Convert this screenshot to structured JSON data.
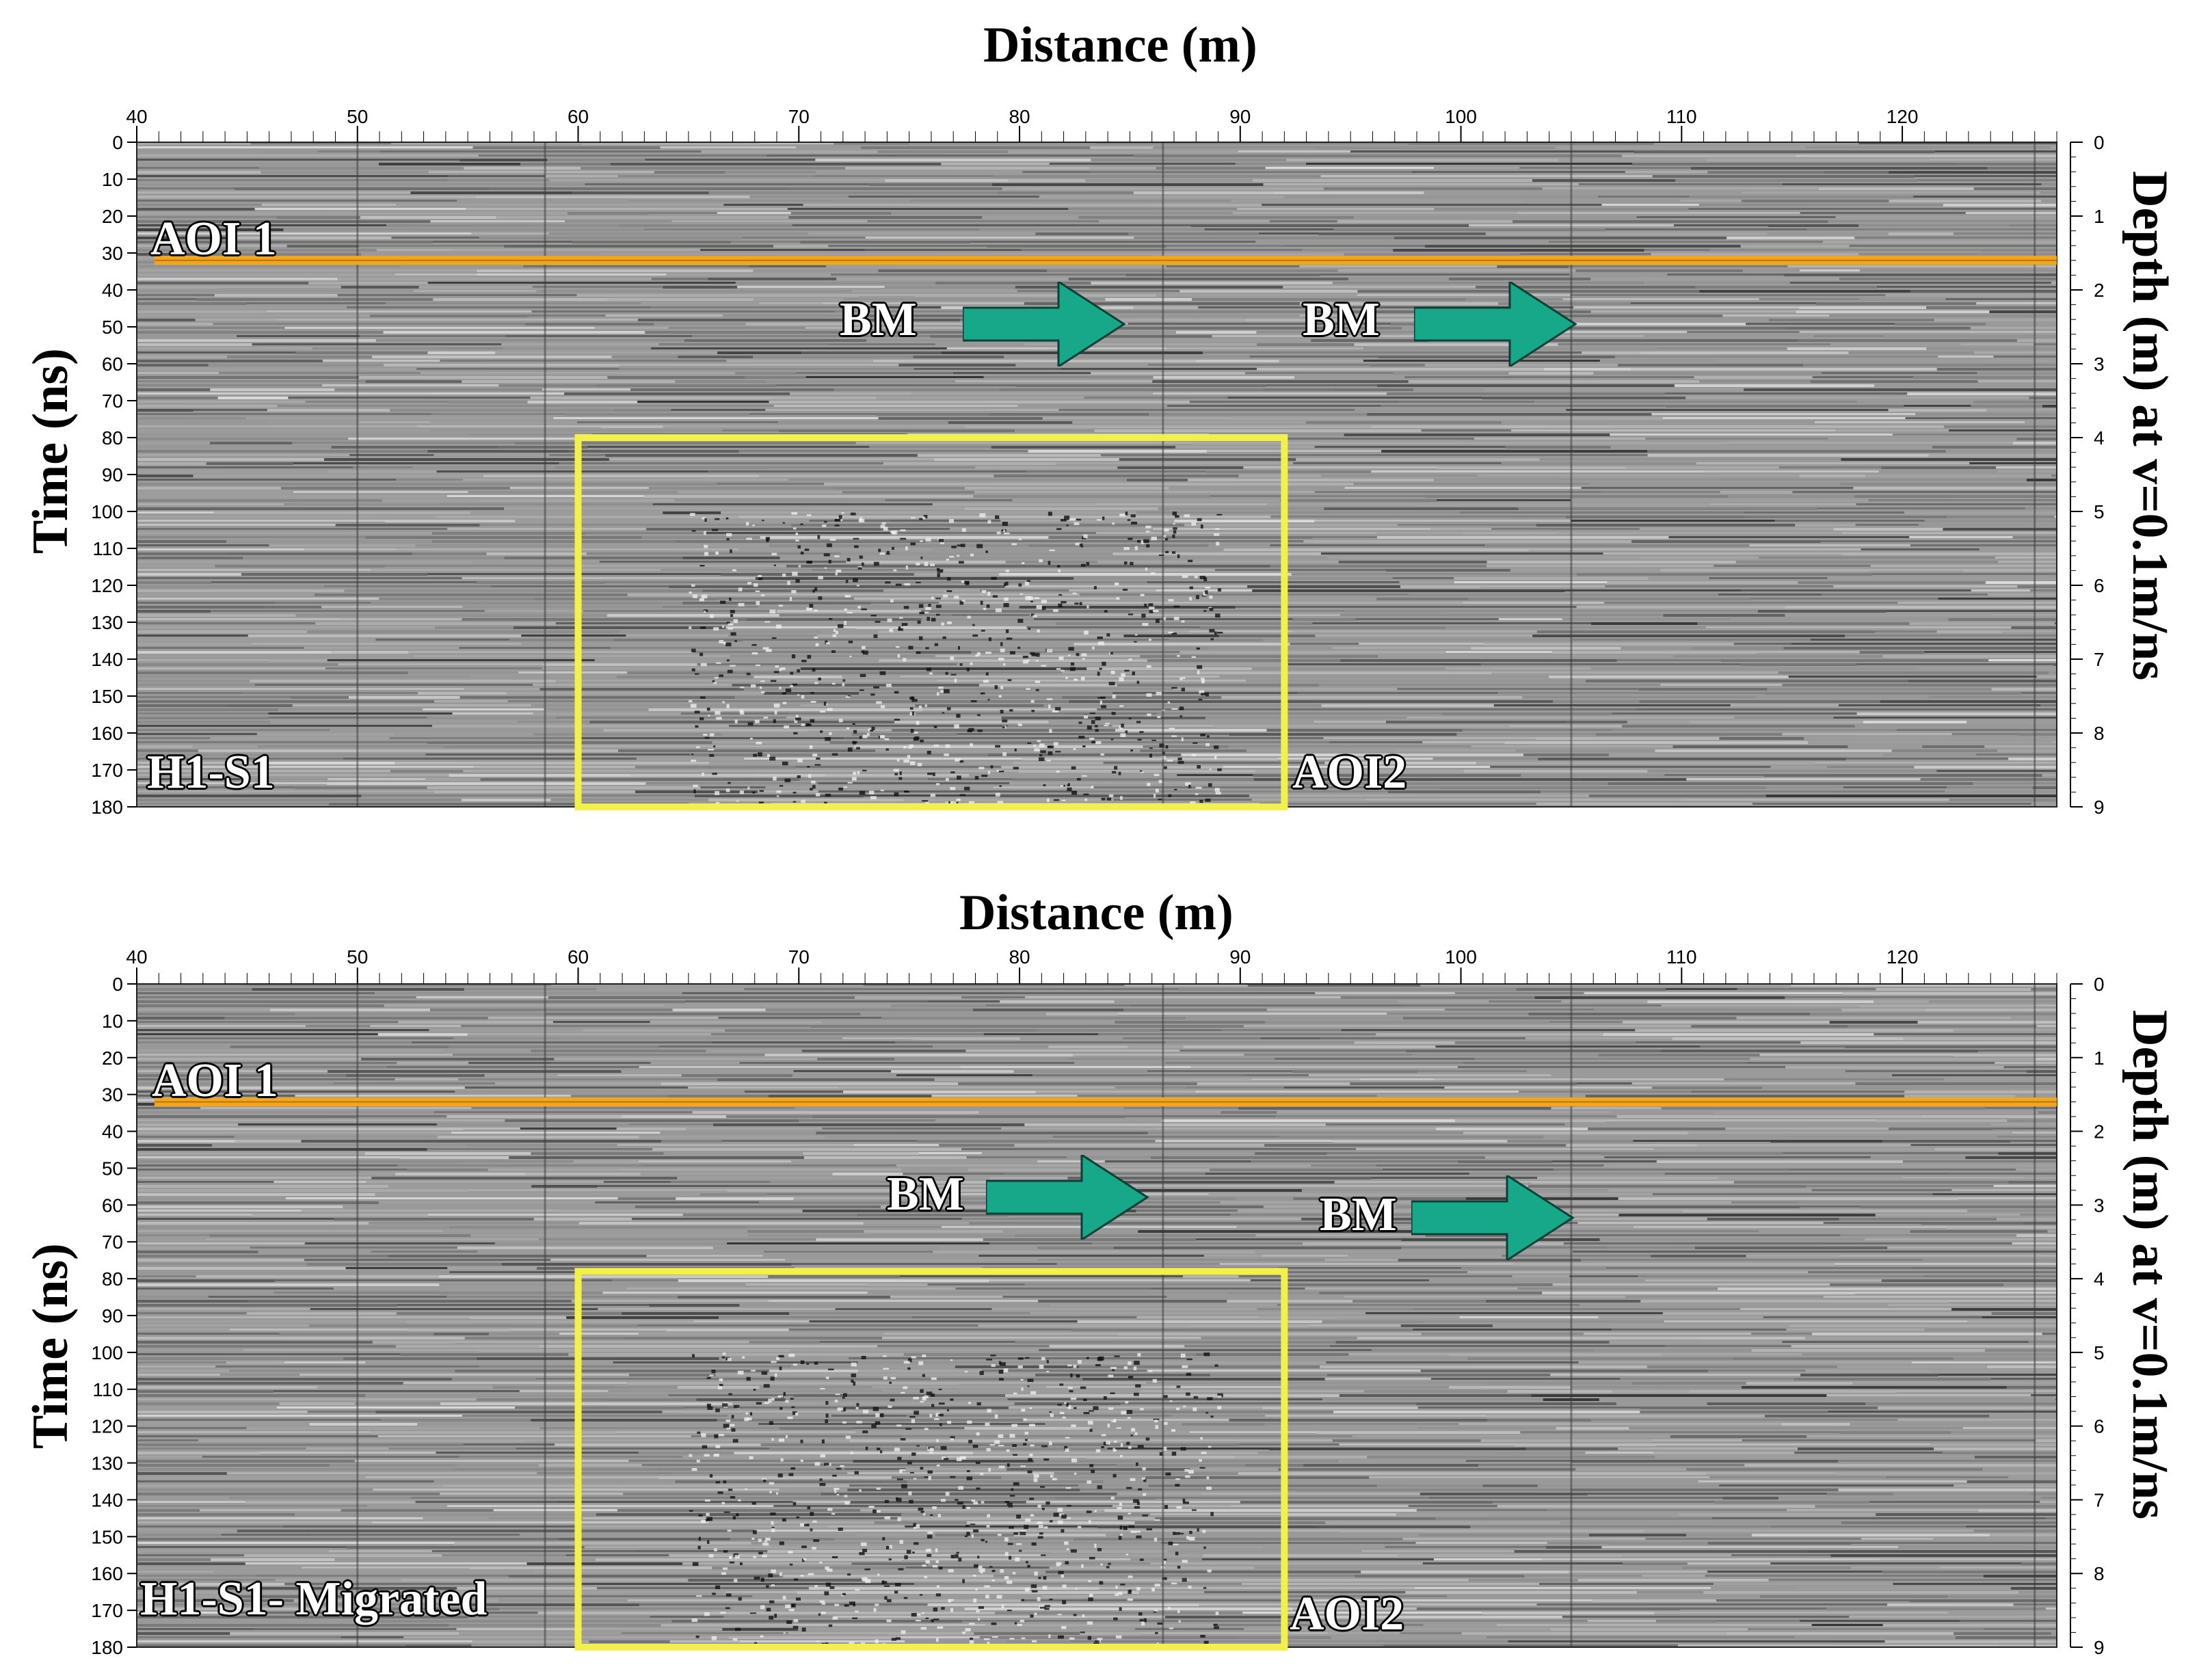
{
  "panels": [
    {
      "title": "Distance (m)",
      "y_label": "Time (ns)",
      "right_label": "Depth (m) at v=0.1m/ns",
      "x_ticks": [
        "40",
        "50",
        "60",
        "70",
        "80",
        "90",
        "100",
        "110",
        "120"
      ],
      "time_ticks": [
        "0",
        "10",
        "20",
        "30",
        "40",
        "50",
        "60",
        "70",
        "80",
        "90",
        "100",
        "110",
        "120",
        "130",
        "140",
        "150",
        "160",
        "170",
        "180"
      ],
      "depth_ticks": [
        "0",
        "1",
        "2",
        "3",
        "4",
        "5",
        "6",
        "7",
        "8",
        "9"
      ],
      "aoi1_label": "AOI 1",
      "aoi2_label": "AOI2",
      "profile_label": "H1-S1",
      "bm_labels": [
        "BM",
        "BM"
      ],
      "aoi1_time_ns": 32,
      "aoi2_box": {
        "x_from_m": 60,
        "x_to_m": 92,
        "t_from_ns": 80,
        "t_to_ns": 180
      }
    },
    {
      "title": "Distance (m)",
      "y_label": "Time (ns)",
      "right_label": "Depth (m) at v=0.1m/ns",
      "x_ticks": [
        "40",
        "50",
        "60",
        "70",
        "80",
        "90",
        "100",
        "110",
        "120"
      ],
      "time_ticks": [
        "0",
        "10",
        "20",
        "30",
        "40",
        "50",
        "60",
        "70",
        "80",
        "90",
        "100",
        "110",
        "120",
        "130",
        "140",
        "150",
        "160",
        "170",
        "180"
      ],
      "depth_ticks": [
        "0",
        "1",
        "2",
        "3",
        "4",
        "5",
        "6",
        "7",
        "8",
        "9"
      ],
      "aoi1_label": "AOI 1",
      "aoi2_label": "AOI2",
      "profile_label": "H1-S1- Migrated",
      "bm_labels": [
        "BM",
        "BM"
      ],
      "aoi1_time_ns": 32,
      "aoi2_box": {
        "x_from_m": 60,
        "x_to_m": 92,
        "t_from_ns": 78,
        "t_to_ns": 180
      }
    }
  ],
  "colors": {
    "aoi1_line": "#f3a51b",
    "aoi2_box": "#f2f04a",
    "arrow": "#17a88a"
  }
}
